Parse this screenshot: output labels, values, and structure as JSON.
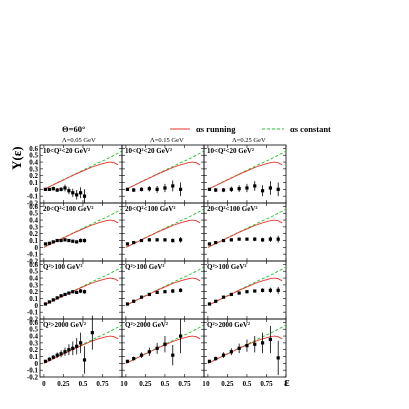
{
  "figure": {
    "theta_label": "Θ=60°",
    "legend": [
      {
        "label": "αs running",
        "color": "#e8352e",
        "style": "solid"
      },
      {
        "label": "αs constant",
        "color": "#22c32a",
        "style": "dashed"
      }
    ],
    "xlabel": "ε",
    "ylabel": "Y(ε)"
  },
  "chart_data": {
    "type": "scatter",
    "grid": false,
    "xlim": [
      -0.05,
      1
    ],
    "ylim": [
      -0.2,
      0.65
    ],
    "x_ticks": [
      "0",
      "0.25",
      "0.5",
      "0.75",
      "1"
    ],
    "y_ticks": [
      "-0.2",
      "-0.1",
      "0",
      "0.1",
      "0.2",
      "0.3",
      "0.4",
      "0.5",
      "0.6"
    ],
    "columns": [
      "Λ=0.05 GeV",
      "Λ=0.15 GeV",
      "Λ=0.25 GeV"
    ],
    "rows": [
      {
        "label": "10<Q²<20 GeV²",
        "panels": [
          {
            "points": [
              {
                "x": 0.02,
                "y": 0.0,
                "e": 0.02
              },
              {
                "x": 0.07,
                "y": 0.0,
                "e": 0.02
              },
              {
                "x": 0.12,
                "y": 0.01,
                "e": 0.03
              },
              {
                "x": 0.17,
                "y": -0.01,
                "e": 0.03
              },
              {
                "x": 0.22,
                "y": 0.0,
                "e": 0.03
              },
              {
                "x": 0.27,
                "y": 0.02,
                "e": 0.05
              },
              {
                "x": 0.32,
                "y": -0.02,
                "e": 0.05
              },
              {
                "x": 0.37,
                "y": -0.05,
                "e": 0.06
              },
              {
                "x": 0.42,
                "y": -0.08,
                "e": 0.07
              },
              {
                "x": 0.47,
                "y": -0.05,
                "e": 0.08
              },
              {
                "x": 0.52,
                "y": -0.1,
                "e": 0.1
              }
            ]
          },
          {
            "points": [
              {
                "x": 0.02,
                "y": 0.0,
                "e": 0.02
              },
              {
                "x": 0.1,
                "y": -0.01,
                "e": 0.03
              },
              {
                "x": 0.2,
                "y": 0.0,
                "e": 0.03
              },
              {
                "x": 0.3,
                "y": 0.01,
                "e": 0.04
              },
              {
                "x": 0.4,
                "y": 0.0,
                "e": 0.05
              },
              {
                "x": 0.5,
                "y": 0.02,
                "e": 0.06
              },
              {
                "x": 0.6,
                "y": 0.05,
                "e": 0.08
              },
              {
                "x": 0.7,
                "y": 0.0,
                "e": 0.1
              }
            ]
          },
          {
            "points": [
              {
                "x": 0.02,
                "y": 0.0,
                "e": 0.02
              },
              {
                "x": 0.1,
                "y": -0.01,
                "e": 0.03
              },
              {
                "x": 0.2,
                "y": -0.01,
                "e": 0.03
              },
              {
                "x": 0.3,
                "y": 0.0,
                "e": 0.04
              },
              {
                "x": 0.4,
                "y": 0.01,
                "e": 0.05
              },
              {
                "x": 0.5,
                "y": 0.02,
                "e": 0.06
              },
              {
                "x": 0.6,
                "y": 0.05,
                "e": 0.07
              },
              {
                "x": 0.7,
                "y": -0.02,
                "e": 0.08
              },
              {
                "x": 0.8,
                "y": 0.02,
                "e": 0.1
              },
              {
                "x": 0.9,
                "y": 0.0,
                "e": 0.1
              }
            ]
          }
        ]
      },
      {
        "label": "20<Q²<100 GeV²",
        "panels": [
          {
            "points": [
              {
                "x": 0.02,
                "y": 0.05,
                "e": 0.01
              },
              {
                "x": 0.07,
                "y": 0.06,
                "e": 0.01
              },
              {
                "x": 0.12,
                "y": 0.08,
                "e": 0.01
              },
              {
                "x": 0.17,
                "y": 0.1,
                "e": 0.01
              },
              {
                "x": 0.22,
                "y": 0.1,
                "e": 0.02
              },
              {
                "x": 0.27,
                "y": 0.11,
                "e": 0.02
              },
              {
                "x": 0.32,
                "y": 0.1,
                "e": 0.02
              },
              {
                "x": 0.37,
                "y": 0.09,
                "e": 0.02
              },
              {
                "x": 0.42,
                "y": 0.08,
                "e": 0.02
              },
              {
                "x": 0.47,
                "y": 0.1,
                "e": 0.03
              },
              {
                "x": 0.52,
                "y": 0.1,
                "e": 0.03
              }
            ]
          },
          {
            "points": [
              {
                "x": 0.02,
                "y": 0.05,
                "e": 0.01
              },
              {
                "x": 0.1,
                "y": 0.07,
                "e": 0.01
              },
              {
                "x": 0.2,
                "y": 0.1,
                "e": 0.01
              },
              {
                "x": 0.3,
                "y": 0.11,
                "e": 0.02
              },
              {
                "x": 0.4,
                "y": 0.11,
                "e": 0.02
              },
              {
                "x": 0.5,
                "y": 0.11,
                "e": 0.02
              },
              {
                "x": 0.6,
                "y": 0.1,
                "e": 0.03
              },
              {
                "x": 0.7,
                "y": 0.11,
                "e": 0.04
              }
            ]
          },
          {
            "points": [
              {
                "x": 0.02,
                "y": 0.05,
                "e": 0.01
              },
              {
                "x": 0.1,
                "y": 0.07,
                "e": 0.01
              },
              {
                "x": 0.2,
                "y": 0.1,
                "e": 0.01
              },
              {
                "x": 0.3,
                "y": 0.11,
                "e": 0.02
              },
              {
                "x": 0.4,
                "y": 0.12,
                "e": 0.02
              },
              {
                "x": 0.5,
                "y": 0.12,
                "e": 0.02
              },
              {
                "x": 0.6,
                "y": 0.12,
                "e": 0.03
              },
              {
                "x": 0.7,
                "y": 0.11,
                "e": 0.03
              },
              {
                "x": 0.8,
                "y": 0.12,
                "e": 0.04
              },
              {
                "x": 0.9,
                "y": 0.12,
                "e": 0.05
              }
            ]
          }
        ]
      },
      {
        "label": "Q²>100 GeV²",
        "panels": [
          {
            "points": [
              {
                "x": 0.02,
                "y": 0.02,
                "e": 0.01
              },
              {
                "x": 0.07,
                "y": 0.05,
                "e": 0.01
              },
              {
                "x": 0.12,
                "y": 0.08,
                "e": 0.01
              },
              {
                "x": 0.17,
                "y": 0.11,
                "e": 0.01
              },
              {
                "x": 0.22,
                "y": 0.14,
                "e": 0.02
              },
              {
                "x": 0.27,
                "y": 0.16,
                "e": 0.02
              },
              {
                "x": 0.32,
                "y": 0.18,
                "e": 0.02
              },
              {
                "x": 0.37,
                "y": 0.2,
                "e": 0.02
              },
              {
                "x": 0.42,
                "y": 0.19,
                "e": 0.02
              },
              {
                "x": 0.47,
                "y": 0.21,
                "e": 0.03
              },
              {
                "x": 0.52,
                "y": 0.2,
                "e": 0.03
              }
            ]
          },
          {
            "points": [
              {
                "x": 0.02,
                "y": 0.02,
                "e": 0.01
              },
              {
                "x": 0.1,
                "y": 0.06,
                "e": 0.01
              },
              {
                "x": 0.2,
                "y": 0.12,
                "e": 0.01
              },
              {
                "x": 0.3,
                "y": 0.16,
                "e": 0.02
              },
              {
                "x": 0.4,
                "y": 0.19,
                "e": 0.02
              },
              {
                "x": 0.5,
                "y": 0.2,
                "e": 0.02
              },
              {
                "x": 0.6,
                "y": 0.21,
                "e": 0.03
              },
              {
                "x": 0.7,
                "y": 0.22,
                "e": 0.03
              }
            ]
          },
          {
            "points": [
              {
                "x": 0.02,
                "y": 0.02,
                "e": 0.01
              },
              {
                "x": 0.1,
                "y": 0.06,
                "e": 0.01
              },
              {
                "x": 0.2,
                "y": 0.12,
                "e": 0.01
              },
              {
                "x": 0.3,
                "y": 0.16,
                "e": 0.02
              },
              {
                "x": 0.4,
                "y": 0.18,
                "e": 0.02
              },
              {
                "x": 0.5,
                "y": 0.2,
                "e": 0.02
              },
              {
                "x": 0.6,
                "y": 0.21,
                "e": 0.02
              },
              {
                "x": 0.7,
                "y": 0.22,
                "e": 0.03
              },
              {
                "x": 0.8,
                "y": 0.22,
                "e": 0.04
              },
              {
                "x": 0.9,
                "y": 0.22,
                "e": 0.05
              }
            ]
          }
        ]
      },
      {
        "label": "Q²>2000 GeV²",
        "panels": [
          {
            "points": [
              {
                "x": 0.02,
                "y": 0.03,
                "e": 0.02
              },
              {
                "x": 0.07,
                "y": 0.06,
                "e": 0.03
              },
              {
                "x": 0.12,
                "y": 0.09,
                "e": 0.03
              },
              {
                "x": 0.17,
                "y": 0.12,
                "e": 0.04
              },
              {
                "x": 0.22,
                "y": 0.14,
                "e": 0.05
              },
              {
                "x": 0.27,
                "y": 0.17,
                "e": 0.06
              },
              {
                "x": 0.32,
                "y": 0.2,
                "e": 0.08
              },
              {
                "x": 0.37,
                "y": 0.22,
                "e": 0.1
              },
              {
                "x": 0.42,
                "y": 0.25,
                "e": 0.12
              },
              {
                "x": 0.47,
                "y": 0.3,
                "e": 0.15
              },
              {
                "x": 0.52,
                "y": 0.05,
                "e": 0.2
              },
              {
                "x": 0.62,
                "y": 0.45,
                "e": 0.25
              }
            ]
          },
          {
            "points": [
              {
                "x": 0.02,
                "y": 0.03,
                "e": 0.02
              },
              {
                "x": 0.1,
                "y": 0.07,
                "e": 0.03
              },
              {
                "x": 0.2,
                "y": 0.12,
                "e": 0.04
              },
              {
                "x": 0.3,
                "y": 0.17,
                "e": 0.06
              },
              {
                "x": 0.4,
                "y": 0.22,
                "e": 0.08
              },
              {
                "x": 0.5,
                "y": 0.28,
                "e": 0.12
              },
              {
                "x": 0.6,
                "y": 0.12,
                "e": 0.15
              },
              {
                "x": 0.7,
                "y": 0.4,
                "e": 0.25
              }
            ]
          },
          {
            "points": [
              {
                "x": 0.02,
                "y": 0.03,
                "e": 0.02
              },
              {
                "x": 0.1,
                "y": 0.07,
                "e": 0.03
              },
              {
                "x": 0.2,
                "y": 0.12,
                "e": 0.04
              },
              {
                "x": 0.3,
                "y": 0.17,
                "e": 0.05
              },
              {
                "x": 0.4,
                "y": 0.22,
                "e": 0.07
              },
              {
                "x": 0.5,
                "y": 0.26,
                "e": 0.09
              },
              {
                "x": 0.6,
                "y": 0.28,
                "e": 0.12
              },
              {
                "x": 0.7,
                "y": 0.3,
                "e": 0.15
              },
              {
                "x": 0.8,
                "y": 0.35,
                "e": 0.2
              },
              {
                "x": 0.9,
                "y": 0.08,
                "e": 0.25
              }
            ]
          }
        ]
      }
    ],
    "curves": {
      "running": {
        "color": "#e8352e",
        "x": [
          0,
          0.1,
          0.2,
          0.3,
          0.4,
          0.5,
          0.6,
          0.7,
          0.8,
          0.85,
          0.9,
          0.95
        ],
        "y": [
          0,
          0.055,
          0.11,
          0.165,
          0.22,
          0.27,
          0.32,
          0.36,
          0.39,
          0.4,
          0.39,
          0.36
        ]
      },
      "constant": {
        "color": "#22c32a",
        "x": [
          0,
          0.1,
          0.2,
          0.3,
          0.4,
          0.5,
          0.6,
          0.7,
          0.8,
          0.9,
          1.0
        ],
        "y": [
          0,
          0.058,
          0.115,
          0.17,
          0.225,
          0.28,
          0.335,
          0.39,
          0.44,
          0.5,
          0.56
        ]
      }
    }
  }
}
